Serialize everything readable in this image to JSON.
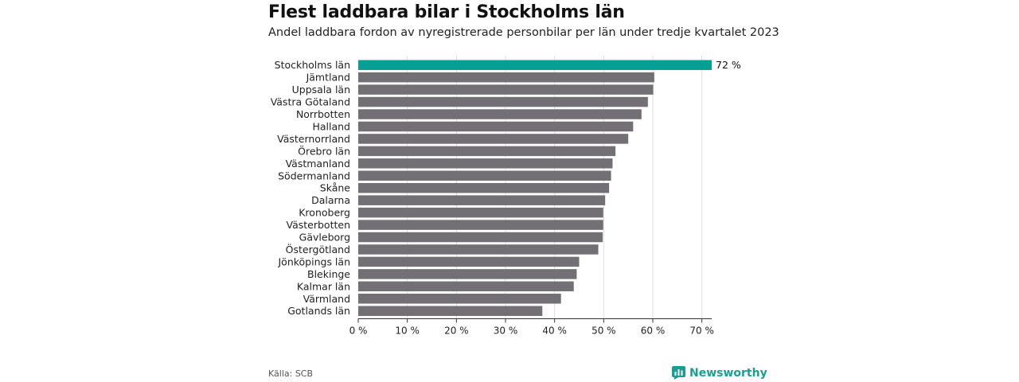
{
  "header": {
    "title": "Flest laddbara bilar i Stockholms län",
    "subtitle": "Andel laddbara fordon av nyregistrerade personbilar per län under tredje kvartalet 2023"
  },
  "footer": {
    "source": "Källa: SCB",
    "brand": "Newsworthy"
  },
  "colors": {
    "highlight": "#079e93",
    "bar": "#727075",
    "grid": "#dddddd",
    "brand": "#1a9e91"
  },
  "chart_data": {
    "type": "bar",
    "orientation": "horizontal",
    "title": "Flest laddbara bilar i Stockholms län",
    "subtitle": "Andel laddbara fordon av nyregistrerade personbilar per län under tredje kvartalet 2023",
    "xlabel": "",
    "ylabel": "",
    "xlim": [
      0,
      72
    ],
    "grid": true,
    "x_ticks": [
      0,
      10,
      20,
      30,
      40,
      50,
      60,
      70
    ],
    "x_tick_labels": [
      "0 %",
      "10 %",
      "20 %",
      "30 %",
      "40 %",
      "50 %",
      "60 %",
      "70 %"
    ],
    "highlight_index": 0,
    "data_labels": [
      {
        "index": 0,
        "text": "72 %"
      }
    ],
    "categories": [
      "Stockholms län",
      "Jämtland",
      "Uppsala län",
      "Västra Götaland",
      "Norrbotten",
      "Halland",
      "Västernorrland",
      "Örebro län",
      "Västmanland",
      "Södermanland",
      "Skåne",
      "Dalarna",
      "Kronoberg",
      "Västerbotten",
      "Gävleborg",
      "Östergötland",
      "Jönköpings län",
      "Blekinge",
      "Kalmar län",
      "Värmland",
      "Gotlands län"
    ],
    "values": [
      72,
      60.3,
      60.1,
      59,
      57.7,
      56,
      55,
      52.4,
      51.8,
      51.5,
      51.1,
      50.3,
      49.9,
      49.9,
      49.8,
      48.9,
      45,
      44.5,
      43.9,
      41.3,
      37.5
    ]
  }
}
